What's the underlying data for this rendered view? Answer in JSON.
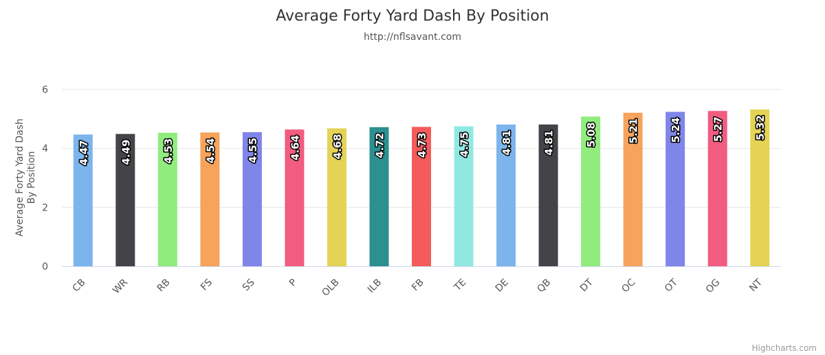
{
  "chart_data": {
    "type": "bar",
    "title": "Average Forty Yard Dash By Position",
    "subtitle": "http://nflsavant.com",
    "ylabel": "Average Forty Yard Dash By Position",
    "xlabel": "",
    "categories": [
      "CB",
      "WR",
      "RB",
      "FS",
      "SS",
      "P",
      "OLB",
      "ILB",
      "FB",
      "TE",
      "DE",
      "QB",
      "DT",
      "OC",
      "OT",
      "OG",
      "NT"
    ],
    "values": [
      4.47,
      4.49,
      4.53,
      4.54,
      4.55,
      4.64,
      4.68,
      4.72,
      4.73,
      4.75,
      4.81,
      4.81,
      5.08,
      5.21,
      5.24,
      5.27,
      5.32
    ],
    "ylim": [
      0,
      6
    ],
    "yticks": [
      0,
      2,
      4,
      6
    ],
    "grid": true,
    "legend": "none",
    "colors": [
      "#7cb5ec",
      "#434348",
      "#90ed7d",
      "#f7a35c",
      "#8085e9",
      "#f15c80",
      "#e4d354",
      "#2b908f",
      "#f45b5b",
      "#91e8e1",
      "#7cb5ec",
      "#434348",
      "#90ed7d",
      "#f7a35c",
      "#8085e9",
      "#f15c80",
      "#e4d354"
    ]
  },
  "credits": "Highcharts.com"
}
